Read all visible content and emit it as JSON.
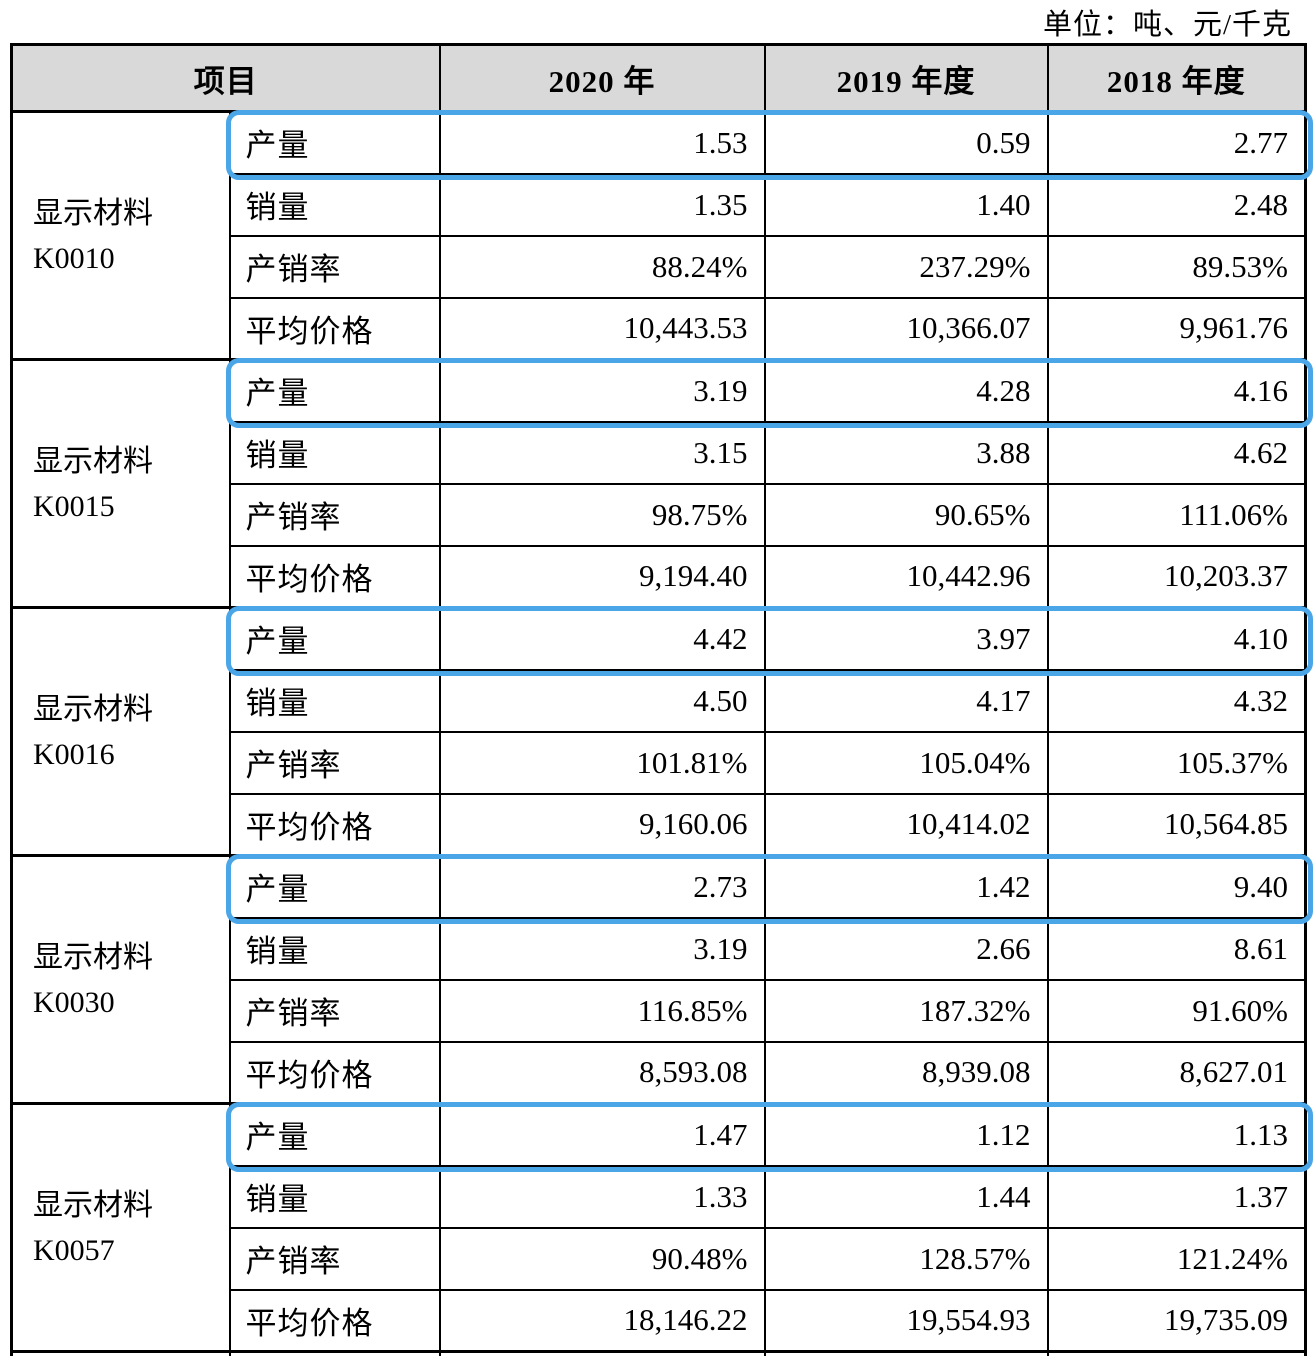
{
  "page": {
    "unit_label": "单位：吨、元/千克"
  },
  "table": {
    "columns": {
      "item": "项目",
      "years": [
        "2020 年",
        "2019 年度",
        "2018 年度"
      ]
    },
    "highlight_color": "#4BA6E8",
    "groups": [
      {
        "name_lines": [
          "显示材料",
          "K0010"
        ],
        "rows": [
          {
            "label": "产量",
            "values": [
              "1.53",
              "0.59",
              "2.77"
            ],
            "highlighted": true
          },
          {
            "label": "销量",
            "values": [
              "1.35",
              "1.40",
              "2.48"
            ],
            "highlighted": false
          },
          {
            "label": "产销率",
            "values": [
              "88.24%",
              "237.29%",
              "89.53%"
            ],
            "highlighted": false
          },
          {
            "label": "平均价格",
            "values": [
              "10,443.53",
              "10,366.07",
              "9,961.76"
            ],
            "highlighted": false
          }
        ]
      },
      {
        "name_lines": [
          "显示材料",
          "K0015"
        ],
        "rows": [
          {
            "label": "产量",
            "values": [
              "3.19",
              "4.28",
              "4.16"
            ],
            "highlighted": true
          },
          {
            "label": "销量",
            "values": [
              "3.15",
              "3.88",
              "4.62"
            ],
            "highlighted": false
          },
          {
            "label": "产销率",
            "values": [
              "98.75%",
              "90.65%",
              "111.06%"
            ],
            "highlighted": false
          },
          {
            "label": "平均价格",
            "values": [
              "9,194.40",
              "10,442.96",
              "10,203.37"
            ],
            "highlighted": false
          }
        ]
      },
      {
        "name_lines": [
          "显示材料",
          "K0016"
        ],
        "rows": [
          {
            "label": "产量",
            "values": [
              "4.42",
              "3.97",
              "4.10"
            ],
            "highlighted": true
          },
          {
            "label": "销量",
            "values": [
              "4.50",
              "4.17",
              "4.32"
            ],
            "highlighted": false
          },
          {
            "label": "产销率",
            "values": [
              "101.81%",
              "105.04%",
              "105.37%"
            ],
            "highlighted": false
          },
          {
            "label": "平均价格",
            "values": [
              "9,160.06",
              "10,414.02",
              "10,564.85"
            ],
            "highlighted": false
          }
        ]
      },
      {
        "name_lines": [
          "显示材料",
          "K0030"
        ],
        "rows": [
          {
            "label": "产量",
            "values": [
              "2.73",
              "1.42",
              "9.40"
            ],
            "highlighted": true
          },
          {
            "label": "销量",
            "values": [
              "3.19",
              "2.66",
              "8.61"
            ],
            "highlighted": false
          },
          {
            "label": "产销率",
            "values": [
              "116.85%",
              "187.32%",
              "91.60%"
            ],
            "highlighted": false
          },
          {
            "label": "平均价格",
            "values": [
              "8,593.08",
              "8,939.08",
              "8,627.01"
            ],
            "highlighted": false
          }
        ]
      },
      {
        "name_lines": [
          "显示材料",
          "K0057"
        ],
        "rows": [
          {
            "label": "产量",
            "values": [
              "1.47",
              "1.12",
              "1.13"
            ],
            "highlighted": true
          },
          {
            "label": "销量",
            "values": [
              "1.33",
              "1.44",
              "1.37"
            ],
            "highlighted": false
          },
          {
            "label": "产销率",
            "values": [
              "90.48%",
              "128.57%",
              "121.24%"
            ],
            "highlighted": false
          },
          {
            "label": "平均价格",
            "values": [
              "18,146.22",
              "19,554.93",
              "19,735.09"
            ],
            "highlighted": false
          }
        ]
      }
    ]
  }
}
